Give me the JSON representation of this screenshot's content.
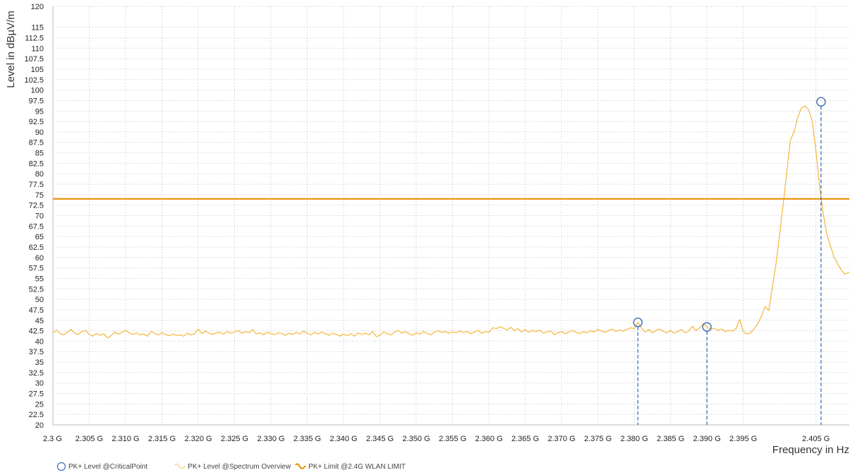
{
  "chart_data": {
    "type": "line",
    "xlabel": "Frequency in Hz",
    "ylabel": "Level in dBµV/m",
    "x_unit": "GHz",
    "xlim": [
      2.3,
      2.4096
    ],
    "ylim": [
      20,
      120
    ],
    "grid": true,
    "x_tick_values": [
      2.3,
      2.305,
      2.31,
      2.315,
      2.32,
      2.325,
      2.33,
      2.335,
      2.34,
      2.345,
      2.35,
      2.355,
      2.36,
      2.365,
      2.37,
      2.375,
      2.38,
      2.385,
      2.39,
      2.395,
      2.405
    ],
    "x_tick_labels": [
      "2.3 G",
      "2.305 G",
      "2.310 G",
      "2.315 G",
      "2.320 G",
      "2.325 G",
      "2.330 G",
      "2.335 G",
      "2.340 G",
      "2.345 G",
      "2.350 G",
      "2.355 G",
      "2.360 G",
      "2.365 G",
      "2.370 G",
      "2.375 G",
      "2.380 G",
      "2.385 G",
      "2.390 G",
      "2.395 G",
      "2.405 G"
    ],
    "y_tick_values": [
      20,
      22.5,
      25,
      27.5,
      30,
      32.5,
      35,
      37.5,
      40,
      42.5,
      45,
      47.5,
      50,
      52.5,
      55,
      57.5,
      60,
      62.5,
      65,
      67.5,
      70,
      72.5,
      75,
      77.5,
      80,
      82.5,
      85,
      87.5,
      90,
      92.5,
      95,
      97.5,
      100,
      102.5,
      105,
      107.5,
      110,
      112.5,
      115,
      120
    ],
    "y_tick_labels": [
      "20",
      "22.5",
      "25",
      "27.5",
      "30",
      "32.5",
      "35",
      "37.5",
      "40",
      "42.5",
      "45",
      "47.5",
      "50",
      "52.5",
      "55",
      "57.5",
      "60",
      "62.5",
      "65",
      "67.5",
      "70",
      "72.5",
      "75",
      "77.5",
      "80",
      "82.5",
      "85",
      "87.5",
      "90",
      "92.5",
      "95",
      "97.5",
      "100",
      "102.5",
      "105",
      "107.5",
      "110",
      "112.5",
      "115",
      "120"
    ],
    "legend_position": "bottom-left",
    "series": [
      {
        "name": "PK+ Level @CriticalPoint",
        "kind": "marker",
        "color": "#3b6fb6",
        "points": [
          [
            2.3805,
            44.5
          ],
          [
            2.39,
            43.4
          ],
          [
            2.4057,
            97.2
          ]
        ]
      },
      {
        "name": "PK+ Level @Spectrum Overview",
        "kind": "line",
        "color": "#f4b63c",
        "points": [
          [
            2.3,
            42.0
          ],
          [
            2.3005,
            42.6
          ],
          [
            2.301,
            41.8
          ],
          [
            2.3015,
            41.5
          ],
          [
            2.302,
            42.2
          ],
          [
            2.3025,
            42.8
          ],
          [
            2.303,
            41.9
          ],
          [
            2.3035,
            41.6
          ],
          [
            2.304,
            42.3
          ],
          [
            2.3045,
            42.6
          ],
          [
            2.305,
            41.6
          ],
          [
            2.3055,
            41.2
          ],
          [
            2.306,
            41.9
          ],
          [
            2.3065,
            41.4
          ],
          [
            2.307,
            41.8
          ],
          [
            2.3075,
            40.8
          ],
          [
            2.308,
            41.3
          ],
          [
            2.3085,
            42.2
          ],
          [
            2.309,
            41.7
          ],
          [
            2.3095,
            42.1
          ],
          [
            2.31,
            42.6
          ],
          [
            2.3105,
            42.0
          ],
          [
            2.311,
            41.6
          ],
          [
            2.3115,
            42.0
          ],
          [
            2.312,
            41.5
          ],
          [
            2.3125,
            41.7
          ],
          [
            2.313,
            41.2
          ],
          [
            2.3135,
            42.3
          ],
          [
            2.314,
            41.9
          ],
          [
            2.3145,
            41.5
          ],
          [
            2.315,
            42.0
          ],
          [
            2.3155,
            41.6
          ],
          [
            2.316,
            41.3
          ],
          [
            2.3165,
            41.7
          ],
          [
            2.317,
            41.4
          ],
          [
            2.3175,
            41.5
          ],
          [
            2.318,
            41.2
          ],
          [
            2.3185,
            41.9
          ],
          [
            2.319,
            41.5
          ],
          [
            2.3195,
            41.8
          ],
          [
            2.32,
            42.9
          ],
          [
            2.3205,
            41.8
          ],
          [
            2.321,
            42.4
          ],
          [
            2.3215,
            41.9
          ],
          [
            2.322,
            41.6
          ],
          [
            2.3225,
            42.0
          ],
          [
            2.323,
            42.1
          ],
          [
            2.3235,
            41.7
          ],
          [
            2.324,
            42.3
          ],
          [
            2.3245,
            41.9
          ],
          [
            2.325,
            42.2
          ],
          [
            2.3255,
            42.6
          ],
          [
            2.326,
            41.9
          ],
          [
            2.3265,
            42.3
          ],
          [
            2.327,
            42.0
          ],
          [
            2.3275,
            42.8
          ],
          [
            2.328,
            41.7
          ],
          [
            2.3285,
            42.0
          ],
          [
            2.329,
            41.5
          ],
          [
            2.3295,
            42.2
          ],
          [
            2.33,
            41.8
          ],
          [
            2.3305,
            41.6
          ],
          [
            2.331,
            42.0
          ],
          [
            2.3315,
            41.8
          ],
          [
            2.332,
            41.4
          ],
          [
            2.3325,
            41.9
          ],
          [
            2.333,
            41.6
          ],
          [
            2.3335,
            42.1
          ],
          [
            2.334,
            41.7
          ],
          [
            2.3345,
            42.4
          ],
          [
            2.335,
            41.9
          ],
          [
            2.3355,
            41.5
          ],
          [
            2.336,
            42.1
          ],
          [
            2.3365,
            41.7
          ],
          [
            2.337,
            42.2
          ],
          [
            2.3375,
            41.8
          ],
          [
            2.338,
            41.4
          ],
          [
            2.3385,
            41.9
          ],
          [
            2.339,
            41.6
          ],
          [
            2.3395,
            41.2
          ],
          [
            2.34,
            41.7
          ],
          [
            2.3405,
            41.3
          ],
          [
            2.341,
            41.8
          ],
          [
            2.3415,
            41.2
          ],
          [
            2.342,
            42.0
          ],
          [
            2.3425,
            41.6
          ],
          [
            2.343,
            41.9
          ],
          [
            2.3435,
            41.5
          ],
          [
            2.344,
            42.3
          ],
          [
            2.3445,
            41.1
          ],
          [
            2.345,
            41.4
          ],
          [
            2.3455,
            42.2
          ],
          [
            2.346,
            41.8
          ],
          [
            2.3465,
            41.5
          ],
          [
            2.347,
            42.1
          ],
          [
            2.3475,
            42.6
          ],
          [
            2.348,
            41.9
          ],
          [
            2.3485,
            42.3
          ],
          [
            2.349,
            41.8
          ],
          [
            2.3495,
            41.4
          ],
          [
            2.35,
            42.0
          ],
          [
            2.3505,
            41.7
          ],
          [
            2.351,
            42.3
          ],
          [
            2.3515,
            41.9
          ],
          [
            2.352,
            41.5
          ],
          [
            2.3525,
            42.2
          ],
          [
            2.353,
            42.5
          ],
          [
            2.3535,
            42.1
          ],
          [
            2.354,
            42.3
          ],
          [
            2.3545,
            41.9
          ],
          [
            2.355,
            42.2
          ],
          [
            2.3555,
            42.0
          ],
          [
            2.356,
            42.4
          ],
          [
            2.3565,
            42.1
          ],
          [
            2.357,
            42.3
          ],
          [
            2.3575,
            41.8
          ],
          [
            2.358,
            42.2
          ],
          [
            2.3585,
            42.6
          ],
          [
            2.359,
            41.9
          ],
          [
            2.3595,
            42.3
          ],
          [
            2.36,
            42.1
          ],
          [
            2.3605,
            43.2
          ],
          [
            2.361,
            43.0
          ],
          [
            2.3615,
            43.4
          ],
          [
            2.362,
            43.1
          ],
          [
            2.3625,
            42.7
          ],
          [
            2.363,
            43.3
          ],
          [
            2.3635,
            42.5
          ],
          [
            2.364,
            43.0
          ],
          [
            2.3645,
            42.2
          ],
          [
            2.365,
            42.8
          ],
          [
            2.3655,
            42.1
          ],
          [
            2.366,
            42.6
          ],
          [
            2.3665,
            42.3
          ],
          [
            2.367,
            42.7
          ],
          [
            2.3675,
            41.9
          ],
          [
            2.368,
            42.2
          ],
          [
            2.3685,
            42.5
          ],
          [
            2.369,
            41.5
          ],
          [
            2.3695,
            42.0
          ],
          [
            2.37,
            42.3
          ],
          [
            2.3705,
            41.8
          ],
          [
            2.371,
            42.2
          ],
          [
            2.3715,
            42.6
          ],
          [
            2.372,
            42.1
          ],
          [
            2.3725,
            41.8
          ],
          [
            2.373,
            42.3
          ],
          [
            2.3735,
            42.0
          ],
          [
            2.374,
            42.5
          ],
          [
            2.3745,
            42.2
          ],
          [
            2.375,
            42.8
          ],
          [
            2.3755,
            42.4
          ],
          [
            2.376,
            42.1
          ],
          [
            2.3765,
            42.6
          ],
          [
            2.377,
            42.9
          ],
          [
            2.3775,
            42.3
          ],
          [
            2.378,
            42.7
          ],
          [
            2.3785,
            42.4
          ],
          [
            2.379,
            42.8
          ],
          [
            2.3795,
            43.2
          ],
          [
            2.38,
            43.0
          ],
          [
            2.3805,
            44.5
          ],
          [
            2.381,
            43.1
          ],
          [
            2.3815,
            42.2
          ],
          [
            2.382,
            42.8
          ],
          [
            2.3825,
            42.0
          ],
          [
            2.383,
            42.6
          ],
          [
            2.3835,
            42.9
          ],
          [
            2.384,
            42.3
          ],
          [
            2.3845,
            42.0
          ],
          [
            2.385,
            42.6
          ],
          [
            2.3855,
            41.9
          ],
          [
            2.386,
            42.3
          ],
          [
            2.3865,
            42.8
          ],
          [
            2.387,
            42.0
          ],
          [
            2.3875,
            42.4
          ],
          [
            2.388,
            43.6
          ],
          [
            2.3885,
            42.5
          ],
          [
            2.389,
            43.2
          ],
          [
            2.3895,
            44.2
          ],
          [
            2.39,
            43.4
          ],
          [
            2.3905,
            42.8
          ],
          [
            2.391,
            43.1
          ],
          [
            2.3915,
            42.6
          ],
          [
            2.392,
            42.9
          ],
          [
            2.3925,
            42.3
          ],
          [
            2.393,
            42.6
          ],
          [
            2.3935,
            42.4
          ],
          [
            2.394,
            43.0
          ],
          [
            2.3945,
            45.2
          ],
          [
            2.395,
            42.3
          ],
          [
            2.3955,
            41.7
          ],
          [
            2.396,
            42.0
          ],
          [
            2.3965,
            43.0
          ],
          [
            2.397,
            44.2
          ],
          [
            2.3975,
            46.0
          ],
          [
            2.398,
            48.3
          ],
          [
            2.3985,
            47.3
          ],
          [
            2.399,
            52.8
          ],
          [
            2.3995,
            58.5
          ],
          [
            2.4,
            65.5
          ],
          [
            2.4005,
            72.8
          ],
          [
            2.401,
            80.5
          ],
          [
            2.4015,
            88.2
          ],
          [
            2.402,
            90.0
          ],
          [
            2.4025,
            93.5
          ],
          [
            2.403,
            95.7
          ],
          [
            2.4035,
            96.2
          ],
          [
            2.404,
            95.3
          ],
          [
            2.4045,
            92.5
          ],
          [
            2.405,
            85.5
          ],
          [
            2.4055,
            77.0
          ],
          [
            2.406,
            70.5
          ],
          [
            2.4065,
            65.5
          ],
          [
            2.407,
            62.8
          ],
          [
            2.4075,
            60.0
          ],
          [
            2.408,
            58.5
          ],
          [
            2.4085,
            57.0
          ],
          [
            2.409,
            56.0
          ],
          [
            2.4096,
            56.5
          ]
        ]
      },
      {
        "name": "PK+ Limit @2.4G WLAN LIMIT",
        "kind": "limit",
        "color": "#e8940c",
        "value": 74
      }
    ]
  }
}
